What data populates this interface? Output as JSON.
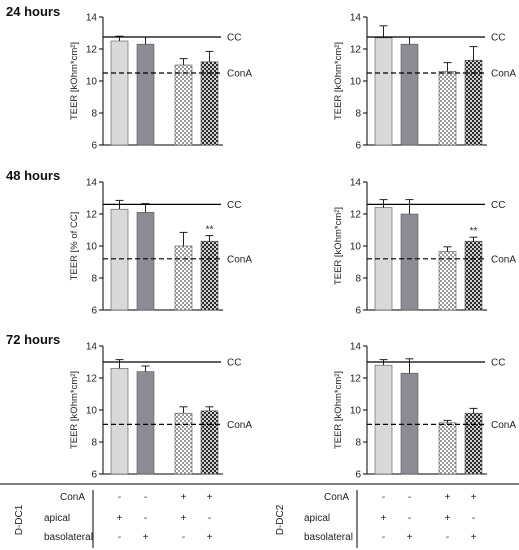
{
  "panel_labels": [
    "24 hours",
    "48 hours",
    "72 hours"
  ],
  "colors": {
    "bar_apical": "#d9d9d9",
    "bar_basolateral": "#8c8c94",
    "hatch_light": "#c8c8c8",
    "hatch_dark": "#3a3a3a",
    "line": "#000000"
  },
  "chart_data": [
    {
      "type": "bar",
      "row": 0,
      "col": 0,
      "ylabel": "TEER [kOhm*cm²]",
      "ylim": [
        6,
        14
      ],
      "yticks": [
        "6",
        "8",
        "10",
        "12",
        "14"
      ],
      "values": [
        12.5,
        12.3,
        11.0,
        11.2
      ],
      "errors": [
        0.3,
        0.45,
        0.4,
        0.65
      ],
      "sig": [
        "",
        "",
        "",
        ""
      ],
      "ref_lines": [
        {
          "label": "CC",
          "value": 12.75,
          "style": "solid"
        },
        {
          "label": "ConA",
          "value": 10.5,
          "style": "dashed"
        }
      ]
    },
    {
      "type": "bar",
      "row": 0,
      "col": 1,
      "ylabel": "TEER [kOhm*cm²]",
      "ylim": [
        6,
        14
      ],
      "yticks": [
        "6",
        "8",
        "10",
        "12",
        "14"
      ],
      "values": [
        12.7,
        12.3,
        10.6,
        11.3
      ],
      "errors": [
        0.75,
        0.45,
        0.55,
        0.85
      ],
      "sig": [
        "",
        "",
        "",
        ""
      ],
      "ref_lines": [
        {
          "label": "CC",
          "value": 12.75,
          "style": "solid"
        },
        {
          "label": "ConA",
          "value": 10.5,
          "style": "dashed"
        }
      ]
    },
    {
      "type": "bar",
      "row": 1,
      "col": 0,
      "ylabel": "TEER [% of CC]",
      "ylim": [
        6,
        14
      ],
      "yticks": [
        "6",
        "8",
        "10",
        "12",
        "14"
      ],
      "values": [
        12.3,
        12.1,
        10.0,
        10.3
      ],
      "errors": [
        0.55,
        0.55,
        0.85,
        0.35
      ],
      "sig": [
        "",
        "",
        "",
        "**"
      ],
      "ref_lines": [
        {
          "label": "CC",
          "value": 12.6,
          "style": "solid"
        },
        {
          "label": "ConA",
          "value": 9.2,
          "style": "dashed"
        }
      ]
    },
    {
      "type": "bar",
      "row": 1,
      "col": 1,
      "ylabel": "TEER [kOhm*cm²]",
      "ylim": [
        6,
        14
      ],
      "yticks": [
        "6",
        "8",
        "10",
        "12",
        "14"
      ],
      "values": [
        12.4,
        12.0,
        9.65,
        10.3
      ],
      "errors": [
        0.5,
        0.9,
        0.3,
        0.25
      ],
      "sig": [
        "",
        "",
        "",
        "**"
      ],
      "ref_lines": [
        {
          "label": "CC",
          "value": 12.6,
          "style": "solid"
        },
        {
          "label": "ConA",
          "value": 9.2,
          "style": "dashed"
        }
      ]
    },
    {
      "type": "bar",
      "row": 2,
      "col": 0,
      "ylabel": "TEER [kOhm*cm²]",
      "ylim": [
        6,
        14
      ],
      "yticks": [
        "6",
        "8",
        "10",
        "12",
        "14"
      ],
      "values": [
        12.6,
        12.4,
        9.8,
        9.95
      ],
      "errors": [
        0.55,
        0.35,
        0.4,
        0.25
      ],
      "sig": [
        "",
        "",
        "",
        ""
      ],
      "ref_lines": [
        {
          "label": "CC",
          "value": 13.0,
          "style": "solid"
        },
        {
          "label": "ConA",
          "value": 9.1,
          "style": "dashed"
        }
      ]
    },
    {
      "type": "bar",
      "row": 2,
      "col": 1,
      "ylabel": "TEER [kOhm*cm²]",
      "ylim": [
        6,
        14
      ],
      "yticks": [
        "6",
        "8",
        "10",
        "12",
        "14"
      ],
      "values": [
        12.8,
        12.3,
        9.2,
        9.8
      ],
      "errors": [
        0.35,
        0.9,
        0.15,
        0.3
      ],
      "sig": [
        "",
        "",
        "",
        ""
      ],
      "ref_lines": [
        {
          "label": "CC",
          "value": 13.0,
          "style": "solid"
        },
        {
          "label": "ConA",
          "value": 9.1,
          "style": "dashed"
        }
      ]
    }
  ],
  "conditions_table": [
    {
      "group": "D-DC1",
      "rows": [
        {
          "label": "ConA",
          "marks": [
            "-",
            "-",
            "+",
            "+"
          ]
        },
        {
          "label": "apical",
          "marks": [
            "+",
            "-",
            "+",
            "-"
          ]
        },
        {
          "label": "basolateral",
          "marks": [
            "-",
            "+",
            "-",
            "+"
          ]
        }
      ]
    },
    {
      "group": "D-DC2",
      "rows": [
        {
          "label": "ConA",
          "marks": [
            "-",
            "-",
            "+",
            "+"
          ]
        },
        {
          "label": "apical",
          "marks": [
            "+",
            "-",
            "+",
            "-"
          ]
        },
        {
          "label": "basolateral",
          "marks": [
            "-",
            "+",
            "-",
            "+"
          ]
        }
      ]
    }
  ]
}
